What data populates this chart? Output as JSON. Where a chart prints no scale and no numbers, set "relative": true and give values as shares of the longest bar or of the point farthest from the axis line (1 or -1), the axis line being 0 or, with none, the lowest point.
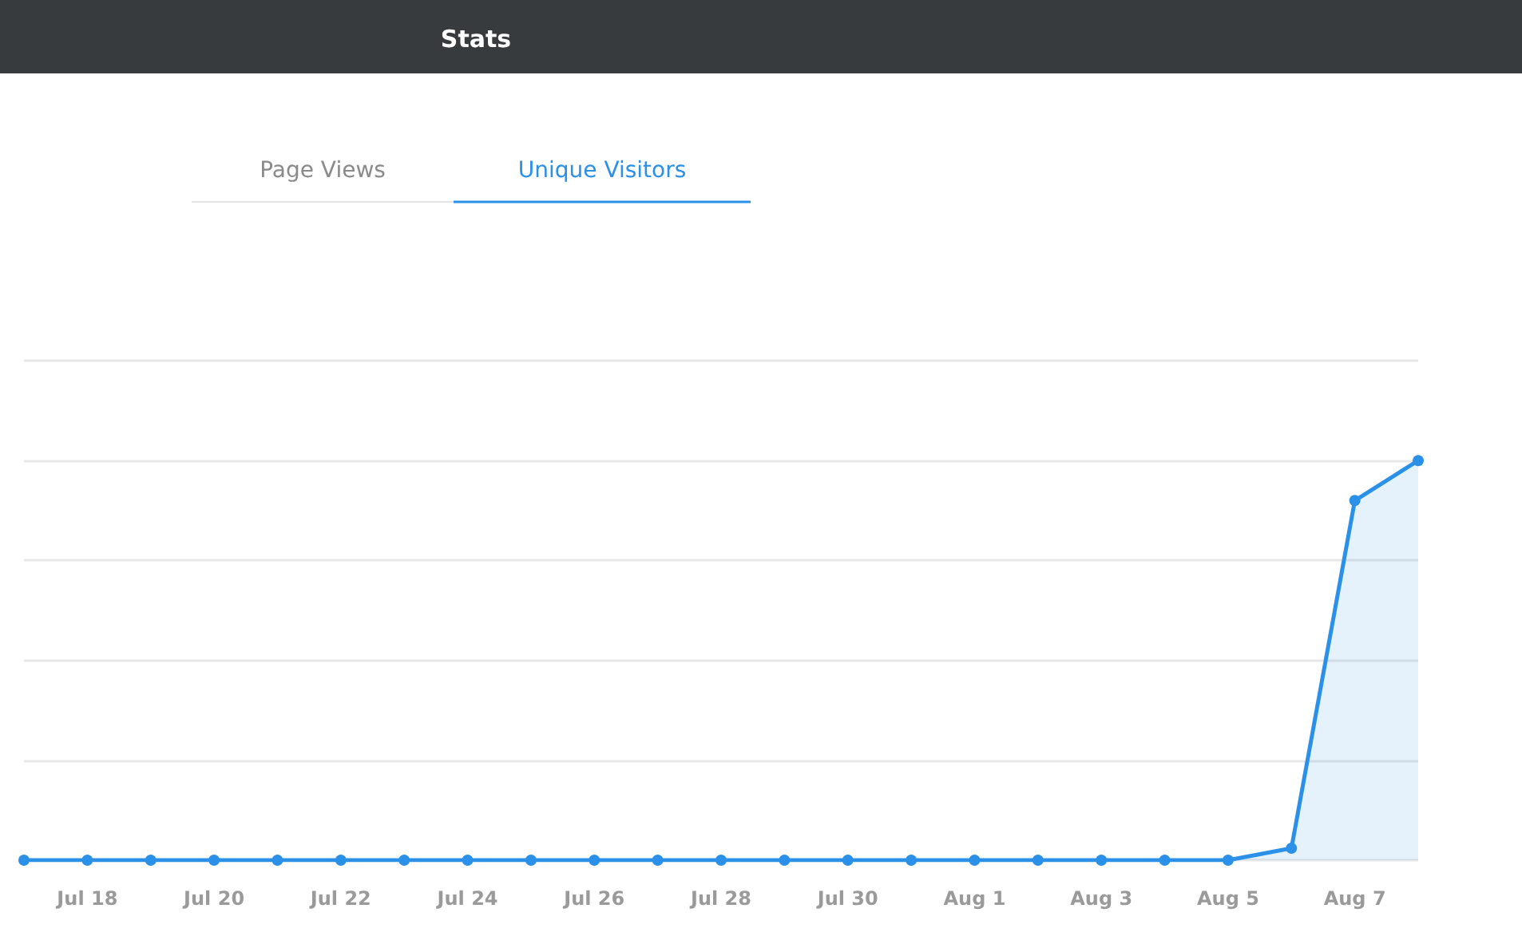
{
  "chart_data": {
    "type": "area",
    "title": "Stats",
    "annotations": [
      "Page Views",
      "Unique Visitors"
    ],
    "categories": [
      null,
      "Jul 18",
      null,
      "Jul 20",
      null,
      "Jul 22",
      null,
      "Jul 24",
      null,
      "Jul 26",
      null,
      "Jul 28",
      null,
      "Jul 30",
      null,
      "Aug 1",
      null,
      "Aug 3",
      null,
      "Aug 5",
      null,
      "Aug 7",
      null
    ],
    "series": [
      {
        "color": "#2b90e8",
        "values": [
          0,
          0,
          0,
          0,
          0,
          0,
          0,
          0,
          0,
          0,
          0,
          0,
          0,
          0,
          0,
          0,
          0,
          0,
          0,
          0,
          0.03,
          0.9,
          1
        ]
      }
    ],
    "relative": true,
    "grid": "y",
    "marker": "circle"
  }
}
